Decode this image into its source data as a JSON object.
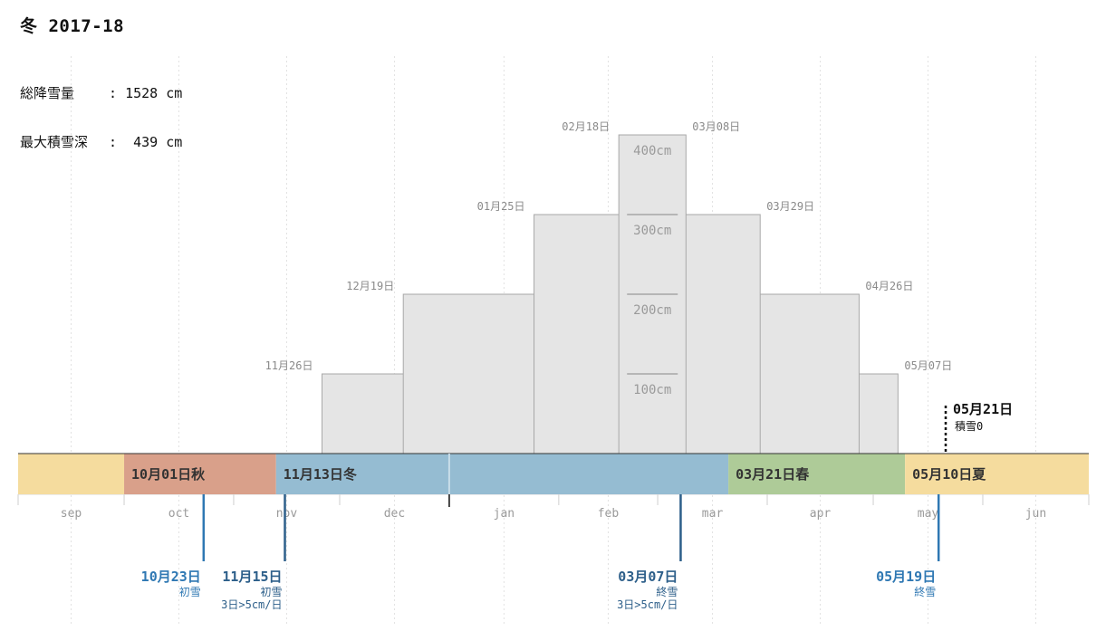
{
  "title": "冬 2017-18",
  "stats": {
    "total_label": "総降雪量",
    "total_value": "1528 cm",
    "max_label": "最大積雪深",
    "max_value": "439 cm"
  },
  "chart_data": {
    "type": "area",
    "months": [
      "sep",
      "oct",
      "nov",
      "dec",
      "jan",
      "feb",
      "mar",
      "apr",
      "may",
      "jun"
    ],
    "snow_depth_steps": [
      {
        "start": "11月26日",
        "end": "05月07日",
        "level_cm": 100
      },
      {
        "start": "12月19日",
        "end": "04月26日",
        "level_cm": 200
      },
      {
        "start": "01月25日",
        "end": "03月29日",
        "level_cm": 300
      },
      {
        "start": "02月18日",
        "end": "03月08日",
        "level_cm": 400
      }
    ],
    "step_labels": [
      "11月26日",
      "12月19日",
      "01月25日",
      "02月18日",
      "03月08日",
      "03月29日",
      "04月26日",
      "05月07日"
    ],
    "depth_ticks": [
      "100cm",
      "200cm",
      "300cm",
      "400cm"
    ],
    "seasons": [
      {
        "start": "09月01日",
        "label": "",
        "color": "#f5dc9e"
      },
      {
        "start": "10月01日",
        "label": "10月01日秋",
        "color": "#d9a08a"
      },
      {
        "start": "11月13日",
        "label": "11月13日冬",
        "color": "#95bcd2"
      },
      {
        "start": "03月21日",
        "label": "03月21日春",
        "color": "#aecb98"
      },
      {
        "start": "05月10日",
        "label": "05月10日夏",
        "color": "#f5dc9e"
      }
    ],
    "season_end": "06月30日",
    "events": [
      {
        "date": "10月23日",
        "label": "初雪",
        "sub": "",
        "color": "#2f78b3"
      },
      {
        "date": "11月15日",
        "label": "初雪",
        "sub": "3日>5cm/日",
        "color": "#2d5f8a"
      },
      {
        "date": "03月07日",
        "label": "終雪",
        "sub": "3日>5cm/日",
        "color": "#2d5f8a"
      },
      {
        "date": "05月19日",
        "label": "終雪",
        "sub": "",
        "color": "#2f78b3"
      }
    ],
    "snow_zero": {
      "date": "05月21日",
      "label": "積雪0"
    },
    "year_divider": "01月01日"
  }
}
